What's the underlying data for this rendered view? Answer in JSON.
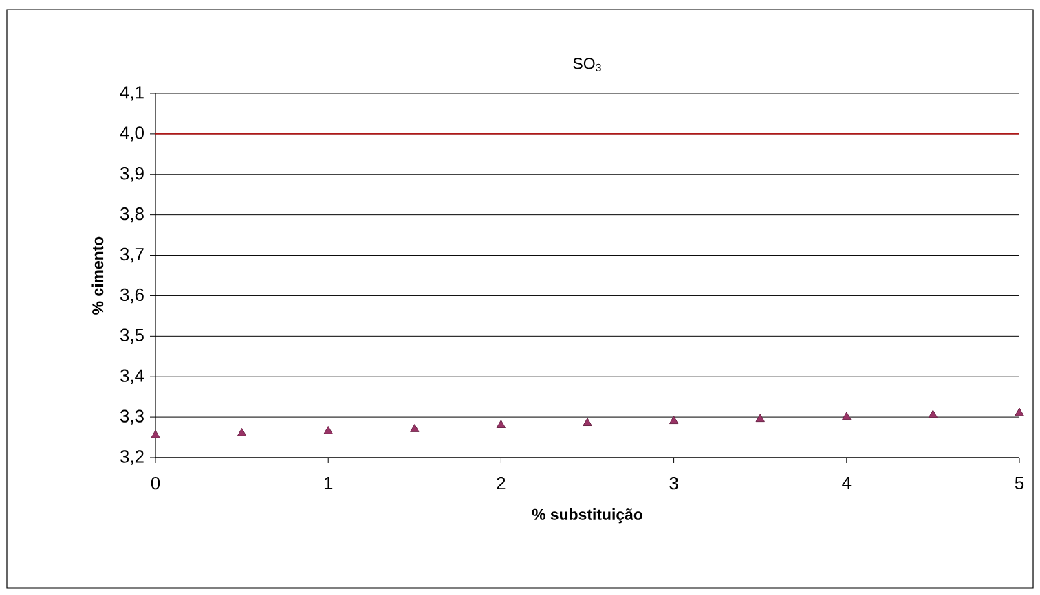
{
  "chart_data": {
    "type": "scatter",
    "title": "SO$_{3}$",
    "xlabel": "% substituição",
    "ylabel": "% cimento",
    "x": [
      0,
      0.5,
      1,
      1.5,
      2,
      2.5,
      3,
      3.5,
      4,
      4.5,
      5
    ],
    "series": [
      {
        "color": "#993366",
        "values": [
          3.255,
          3.26,
          3.265,
          3.27,
          3.28,
          3.285,
          3.29,
          3.295,
          3.3,
          3.305,
          3.31
        ]
      }
    ],
    "marker": "triangle",
    "grid": "y",
    "legend": false,
    "xlim": [
      0,
      5
    ],
    "xticks": [
      0,
      1,
      2,
      3,
      4,
      5
    ],
    "ylim": [
      3.2,
      4.1
    ],
    "yticks": [
      {
        "value": 3.2,
        "label": "3,2"
      },
      {
        "value": 3.3,
        "label": "3,3"
      },
      {
        "value": 3.4,
        "label": "3,4"
      },
      {
        "value": 3.5,
        "label": "3,5"
      },
      {
        "value": 3.6,
        "label": "3,6"
      },
      {
        "value": 3.7,
        "label": "3,7"
      },
      {
        "value": 3.8,
        "label": "3,8"
      },
      {
        "value": 3.9,
        "label": "3,9"
      },
      {
        "value": 4.0,
        "label": "4,0"
      },
      {
        "value": 4.1,
        "label": "4,1"
      }
    ],
    "ref_lines": [
      {
        "axis": "y",
        "value": 4.0,
        "color": "#cc0000"
      }
    ]
  }
}
